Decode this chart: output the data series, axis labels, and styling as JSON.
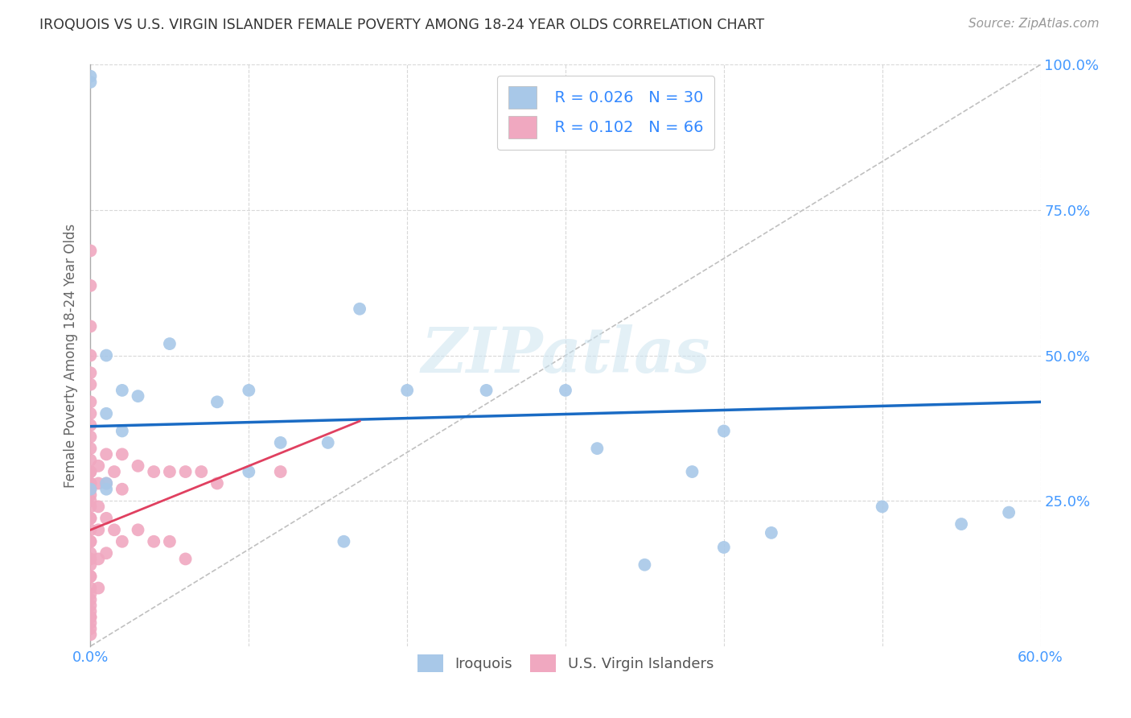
{
  "title": "IROQUOIS VS U.S. VIRGIN ISLANDER FEMALE POVERTY AMONG 18-24 YEAR OLDS CORRELATION CHART",
  "source": "Source: ZipAtlas.com",
  "ylabel": "Female Poverty Among 18-24 Year Olds",
  "xlim": [
    0.0,
    0.6
  ],
  "ylim": [
    0.0,
    1.0
  ],
  "xtick_positions": [
    0.0,
    0.1,
    0.2,
    0.3,
    0.4,
    0.5,
    0.6
  ],
  "xticklabels": [
    "0.0%",
    "",
    "",
    "",
    "",
    "",
    "60.0%"
  ],
  "ytick_positions": [
    0.0,
    0.25,
    0.5,
    0.75,
    1.0
  ],
  "yticklabels": [
    "",
    "25.0%",
    "50.0%",
    "75.0%",
    "100.0%"
  ],
  "legend_r1": "R = 0.026",
  "legend_n1": "N = 30",
  "legend_r2": "R = 0.102",
  "legend_n2": "N = 66",
  "blue_color": "#a8c8e8",
  "pink_color": "#f0a8c0",
  "trend_blue_color": "#1a6bc4",
  "trend_pink_color": "#e04060",
  "ref_line_color": "#c0c0c0",
  "grid_color": "#d8d8d8",
  "watermark": "ZIPatlas",
  "watermark_color": "#cce4f0",
  "iroquois_x": [
    0.0,
    0.0,
    0.0,
    0.01,
    0.01,
    0.01,
    0.02,
    0.02,
    0.03,
    0.05,
    0.08,
    0.1,
    0.1,
    0.12,
    0.15,
    0.16,
    0.17,
    0.2,
    0.25,
    0.3,
    0.32,
    0.35,
    0.38,
    0.4,
    0.4,
    0.43,
    0.5,
    0.55,
    0.58,
    0.01
  ],
  "iroquois_y": [
    0.97,
    0.98,
    0.27,
    0.27,
    0.4,
    0.28,
    0.44,
    0.37,
    0.43,
    0.52,
    0.42,
    0.3,
    0.44,
    0.35,
    0.35,
    0.18,
    0.58,
    0.44,
    0.44,
    0.44,
    0.34,
    0.14,
    0.3,
    0.37,
    0.17,
    0.195,
    0.24,
    0.21,
    0.23,
    0.5
  ],
  "vi_x": [
    0.0,
    0.0,
    0.0,
    0.0,
    0.0,
    0.0,
    0.0,
    0.0,
    0.0,
    0.0,
    0.0,
    0.0,
    0.0,
    0.0,
    0.0,
    0.0,
    0.0,
    0.0,
    0.0,
    0.0,
    0.0,
    0.0,
    0.0,
    0.0,
    0.0,
    0.0,
    0.0,
    0.0,
    0.0,
    0.0,
    0.0,
    0.0,
    0.0,
    0.0,
    0.0,
    0.0,
    0.0,
    0.0,
    0.0,
    0.0,
    0.005,
    0.005,
    0.005,
    0.005,
    0.005,
    0.005,
    0.01,
    0.01,
    0.01,
    0.01,
    0.015,
    0.015,
    0.02,
    0.02,
    0.02,
    0.03,
    0.03,
    0.04,
    0.04,
    0.05,
    0.05,
    0.06,
    0.06,
    0.07,
    0.08,
    0.12
  ],
  "vi_y": [
    0.68,
    0.62,
    0.55,
    0.5,
    0.47,
    0.45,
    0.42,
    0.4,
    0.38,
    0.36,
    0.34,
    0.32,
    0.3,
    0.28,
    0.26,
    0.24,
    0.22,
    0.2,
    0.18,
    0.16,
    0.14,
    0.12,
    0.1,
    0.08,
    0.07,
    0.06,
    0.05,
    0.04,
    0.03,
    0.02,
    0.3,
    0.28,
    0.27,
    0.25,
    0.22,
    0.18,
    0.15,
    0.12,
    0.09,
    0.05,
    0.31,
    0.28,
    0.24,
    0.2,
    0.15,
    0.1,
    0.33,
    0.28,
    0.22,
    0.16,
    0.3,
    0.2,
    0.33,
    0.27,
    0.18,
    0.31,
    0.2,
    0.3,
    0.18,
    0.3,
    0.18,
    0.3,
    0.15,
    0.3,
    0.28,
    0.3
  ],
  "trend_blue_intercept": 0.378,
  "trend_blue_slope": 0.07,
  "trend_pink_intercept": 0.2,
  "trend_pink_slope": 1.1
}
